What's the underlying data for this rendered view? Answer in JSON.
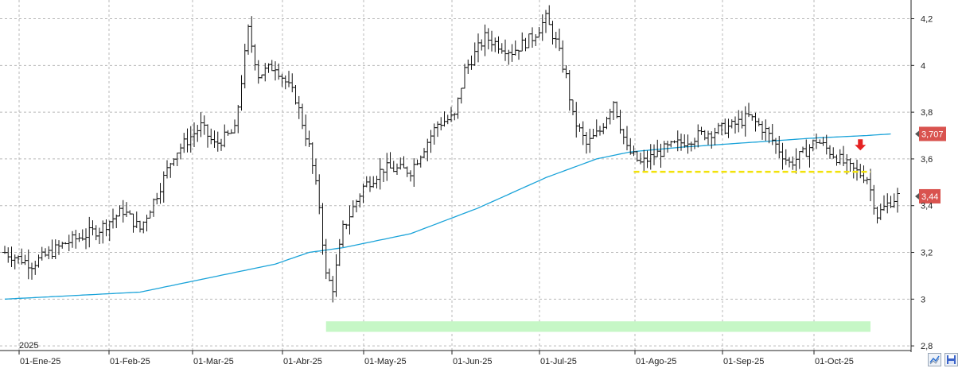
{
  "chart_data": {
    "type": "ohlc",
    "year_label": "2025",
    "x_tick_labels": [
      "01-Ene-25",
      "01-Feb-25",
      "01-Mar-25",
      "01-Abr-25",
      "01-May-25",
      "01-Jun-25",
      "01-Jul-25",
      "01-Ago-25",
      "01-Sep-25",
      "01-Oct-25"
    ],
    "y_tick_labels": [
      "4,2",
      "4",
      "3,8",
      "3,6",
      "3,4",
      "3,2",
      "3",
      "2,8"
    ],
    "y_ticks": [
      4.2,
      4.0,
      3.8,
      3.6,
      3.4,
      3.2,
      3.0,
      2.8
    ],
    "ylim": [
      2.78,
      4.28
    ],
    "grid": true,
    "price_series": {
      "name": "",
      "anchors": [
        [
          0,
          3.2
        ],
        [
          8,
          3.15
        ],
        [
          18,
          3.24
        ],
        [
          28,
          3.3
        ],
        [
          35,
          3.38
        ],
        [
          40,
          3.3
        ],
        [
          45,
          3.45
        ],
        [
          50,
          3.62
        ],
        [
          58,
          3.74
        ],
        [
          62,
          3.66
        ],
        [
          68,
          3.72
        ],
        [
          72,
          4.15
        ],
        [
          75,
          3.96
        ],
        [
          80,
          4.0
        ],
        [
          86,
          3.86
        ],
        [
          90,
          3.65
        ],
        [
          93,
          3.4
        ],
        [
          95,
          3.1
        ],
        [
          97,
          3.05
        ],
        [
          100,
          3.3
        ],
        [
          106,
          3.48
        ],
        [
          112,
          3.56
        ],
        [
          120,
          3.55
        ],
        [
          128,
          3.75
        ],
        [
          133,
          3.78
        ],
        [
          136,
          3.98
        ],
        [
          142,
          4.12
        ],
        [
          150,
          4.06
        ],
        [
          156,
          4.12
        ],
        [
          160,
          4.2
        ],
        [
          163,
          4.1
        ],
        [
          166,
          3.95
        ],
        [
          168,
          3.78
        ],
        [
          172,
          3.66
        ],
        [
          176,
          3.72
        ],
        [
          180,
          3.85
        ],
        [
          184,
          3.64
        ],
        [
          188,
          3.58
        ],
        [
          195,
          3.64
        ],
        [
          205,
          3.7
        ],
        [
          215,
          3.74
        ],
        [
          220,
          3.78
        ],
        [
          225,
          3.72
        ],
        [
          232,
          3.58
        ],
        [
          236,
          3.62
        ],
        [
          240,
          3.68
        ],
        [
          245,
          3.62
        ],
        [
          250,
          3.56
        ],
        [
          255,
          3.52
        ],
        [
          258,
          3.36
        ],
        [
          262,
          3.42
        ],
        [
          264,
          3.44
        ]
      ],
      "last_value": 3.44,
      "last_label": "3,44"
    },
    "moving_average": {
      "name": "",
      "color": "#1aa3d9",
      "anchors": [
        [
          0,
          3.0
        ],
        [
          40,
          3.03
        ],
        [
          60,
          3.09
        ],
        [
          80,
          3.15
        ],
        [
          90,
          3.2
        ],
        [
          100,
          3.22
        ],
        [
          120,
          3.28
        ],
        [
          140,
          3.39
        ],
        [
          160,
          3.52
        ],
        [
          175,
          3.6
        ],
        [
          185,
          3.63
        ],
        [
          200,
          3.65
        ],
        [
          220,
          3.67
        ],
        [
          240,
          3.69
        ],
        [
          255,
          3.7
        ],
        [
          262,
          3.707
        ]
      ],
      "last_value": 3.707,
      "last_label": "3,707"
    },
    "support_line": {
      "value": 3.545,
      "start_day": 186,
      "end_day": 256,
      "color": "#f2e20a"
    },
    "support_zone": {
      "low": 2.86,
      "high": 2.905,
      "start_day": 95,
      "end_day": 256,
      "color": "#c6f7c6"
    },
    "sell_signal": {
      "day": 253,
      "color": "#e52222"
    },
    "price_label_color": "#d9534f",
    "colors": {
      "bars": "#111111",
      "grid": "#b9b9b9",
      "axis": "#222222",
      "text": "#222222"
    }
  },
  "controls": {
    "zoom_icon": "trend-icon",
    "save_icon": "disk-icon"
  }
}
